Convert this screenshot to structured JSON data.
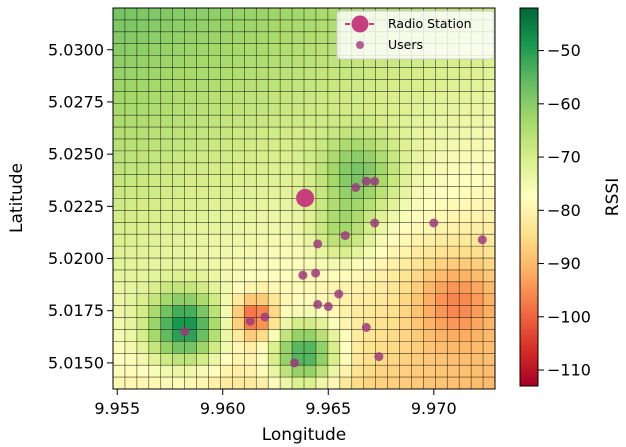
{
  "chart_data": {
    "type": "heatmap",
    "title": "",
    "xlabel": "Longitude",
    "ylabel": "Latitude",
    "colorbar_label": "RSSI",
    "xlim": [
      9.9548,
      9.9729
    ],
    "ylim": [
      5.01375,
      5.032
    ],
    "xticks": [
      9.955,
      9.96,
      9.965,
      9.97
    ],
    "xtick_labels": [
      "9.955",
      "9.960",
      "9.965",
      "9.970"
    ],
    "yticks": [
      5.015,
      5.0175,
      5.02,
      5.0225,
      5.025,
      5.0275,
      5.03
    ],
    "ytick_labels": [
      "5.0150",
      "5.0175",
      "5.0200",
      "5.0225",
      "5.0250",
      "5.0275",
      "5.0300"
    ],
    "colorbar_range": [
      -113,
      -42
    ],
    "colorbar_ticks": [
      -50,
      -60,
      -70,
      -80,
      -90,
      -100,
      -110
    ],
    "colorbar_tick_labels": [
      "−50",
      "−60",
      "−70",
      "−80",
      "−90",
      "−100",
      "−110"
    ],
    "colormap": "RdYlGn",
    "grid": true,
    "legend_position": "top-right",
    "series": [
      {
        "name": "Radio Station",
        "kind": "station",
        "color": "#c73e7f",
        "points": [
          {
            "x": 9.9639,
            "y": 5.0229
          }
        ]
      },
      {
        "name": "Users",
        "kind": "users",
        "color": "#9c3b7d",
        "points": [
          {
            "x": 9.9663,
            "y": 5.0234
          },
          {
            "x": 9.9668,
            "y": 5.0237
          },
          {
            "x": 9.9672,
            "y": 5.0237
          },
          {
            "x": 9.9658,
            "y": 5.0211
          },
          {
            "x": 9.9672,
            "y": 5.0217
          },
          {
            "x": 9.97,
            "y": 5.0217
          },
          {
            "x": 9.9645,
            "y": 5.0207
          },
          {
            "x": 9.9723,
            "y": 5.0209
          },
          {
            "x": 9.9638,
            "y": 5.0192
          },
          {
            "x": 9.9644,
            "y": 5.0193
          },
          {
            "x": 9.9655,
            "y": 5.0183
          },
          {
            "x": 9.9645,
            "y": 5.0178
          },
          {
            "x": 9.965,
            "y": 5.0177
          },
          {
            "x": 9.962,
            "y": 5.0172
          },
          {
            "x": 9.9613,
            "y": 5.017
          },
          {
            "x": 9.9582,
            "y": 5.0165
          },
          {
            "x": 9.9668,
            "y": 5.0167
          },
          {
            "x": 9.9674,
            "y": 5.0153
          },
          {
            "x": 9.9634,
            "y": 5.015
          }
        ]
      }
    ],
    "heatmap": {
      "baseline": -74,
      "trend": {
        "x_center": 9.9638,
        "y_center": 5.0228,
        "x_slope": -600,
        "y_slope": 1200
      },
      "sources": [
        {
          "x": 9.9582,
          "y": 5.0167,
          "sigma": 0.0012,
          "amplitude": 30
        },
        {
          "x": 9.9639,
          "y": 5.0154,
          "sigma": 0.0011,
          "amplitude": 30
        },
        {
          "x": 9.9665,
          "y": 5.024,
          "sigma": 0.0013,
          "amplitude": 16
        },
        {
          "x": 9.9657,
          "y": 5.0213,
          "sigma": 0.001,
          "amplitude": 12
        },
        {
          "x": 9.9615,
          "y": 5.0172,
          "sigma": 0.0007,
          "amplitude": -22
        },
        {
          "x": 9.971,
          "y": 5.018,
          "sigma": 0.0014,
          "amplitude": -12
        }
      ]
    }
  }
}
